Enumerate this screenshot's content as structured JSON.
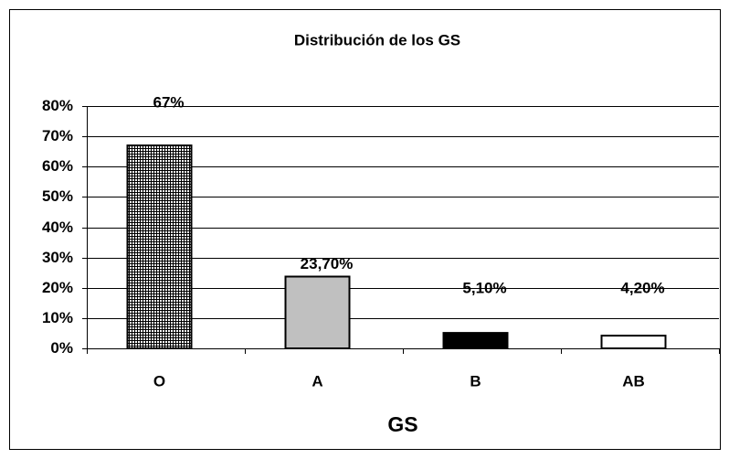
{
  "chart_data": {
    "type": "bar",
    "title": "Distribución de los GS",
    "x_label": "GS",
    "categories": [
      "O",
      "A",
      "B",
      "AB"
    ],
    "values": [
      67,
      23.7,
      5.1,
      4.2
    ],
    "value_labels": [
      "67%",
      "23,70%",
      "5,10%",
      "4,20%"
    ],
    "fills": [
      "grid",
      "#c0c0c0",
      "#000000",
      "#ffffff"
    ],
    "ylim": [
      0,
      80
    ],
    "yticks": [
      {
        "value": 0,
        "label": "0%"
      },
      {
        "value": 10,
        "label": "10%"
      },
      {
        "value": 20,
        "label": "20%"
      },
      {
        "value": 30,
        "label": "30%"
      },
      {
        "value": 40,
        "label": "40%"
      },
      {
        "value": 50,
        "label": "50%"
      },
      {
        "value": 60,
        "label": "60%"
      },
      {
        "value": 70,
        "label": "70%"
      },
      {
        "value": 80,
        "label": "80%"
      }
    ],
    "grid": true
  }
}
